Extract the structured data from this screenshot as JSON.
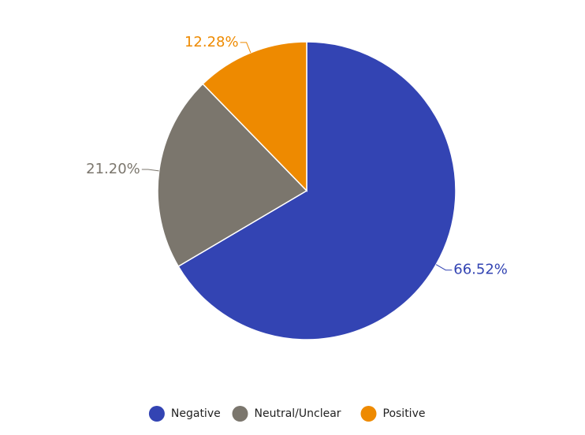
{
  "chart_data": {
    "type": "pie",
    "categories": [
      "Negative",
      "Neutral/Unclear",
      "Positive"
    ],
    "values": [
      66.52,
      21.2,
      12.28
    ],
    "value_labels": [
      "66.52%",
      "21.20%",
      "12.28%"
    ],
    "colors": [
      "#3344b3",
      "#7b766d",
      "#ee8a00"
    ],
    "legend": "bottom"
  }
}
